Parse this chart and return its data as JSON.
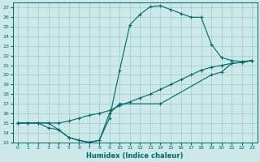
{
  "title": "",
  "xlabel": "Humidex (Indice chaleur)",
  "background_color": "#cce8e8",
  "grid_color": "#99cccc",
  "line_color": "#006666",
  "xlim": [
    -0.5,
    23.5
  ],
  "ylim": [
    13,
    27.5
  ],
  "yticks": [
    13,
    14,
    15,
    16,
    17,
    18,
    19,
    20,
    21,
    22,
    23,
    24,
    25,
    26,
    27
  ],
  "xticks": [
    0,
    1,
    2,
    3,
    4,
    5,
    6,
    7,
    8,
    9,
    10,
    11,
    12,
    13,
    14,
    15,
    16,
    17,
    18,
    19,
    20,
    21,
    22,
    23
  ],
  "line1_x": [
    0,
    1,
    2,
    3,
    4,
    5,
    6,
    7,
    8,
    9,
    10,
    11,
    12,
    13,
    14,
    15,
    16,
    17,
    18,
    19,
    20,
    21,
    22,
    23
  ],
  "line1_y": [
    15.0,
    15.0,
    15.0,
    14.5,
    14.3,
    13.5,
    13.2,
    13.0,
    13.2,
    15.5,
    20.5,
    25.2,
    26.3,
    27.1,
    27.2,
    26.8,
    26.4,
    26.0,
    26.0,
    23.2,
    21.8,
    21.5,
    21.4,
    21.5
  ],
  "line2_x": [
    0,
    1,
    2,
    3,
    4,
    5,
    6,
    7,
    8,
    9,
    10,
    11,
    12,
    13,
    14,
    15,
    16,
    17,
    18,
    19,
    20,
    21,
    22,
    23
  ],
  "line2_y": [
    15.0,
    15.0,
    15.0,
    15.0,
    15.0,
    15.2,
    15.5,
    15.8,
    16.0,
    16.3,
    16.8,
    17.2,
    17.6,
    18.0,
    18.5,
    19.0,
    19.5,
    20.0,
    20.5,
    20.8,
    21.0,
    21.2,
    21.3,
    21.5
  ],
  "line3_x": [
    0,
    1,
    2,
    3,
    4,
    5,
    6,
    7,
    8,
    9,
    10,
    14,
    19,
    20,
    21,
    22,
    23
  ],
  "line3_y": [
    15.0,
    15.0,
    15.0,
    15.0,
    14.3,
    13.5,
    13.2,
    13.0,
    13.2,
    16.0,
    17.0,
    17.0,
    20.0,
    20.3,
    21.2,
    21.3,
    21.5
  ]
}
